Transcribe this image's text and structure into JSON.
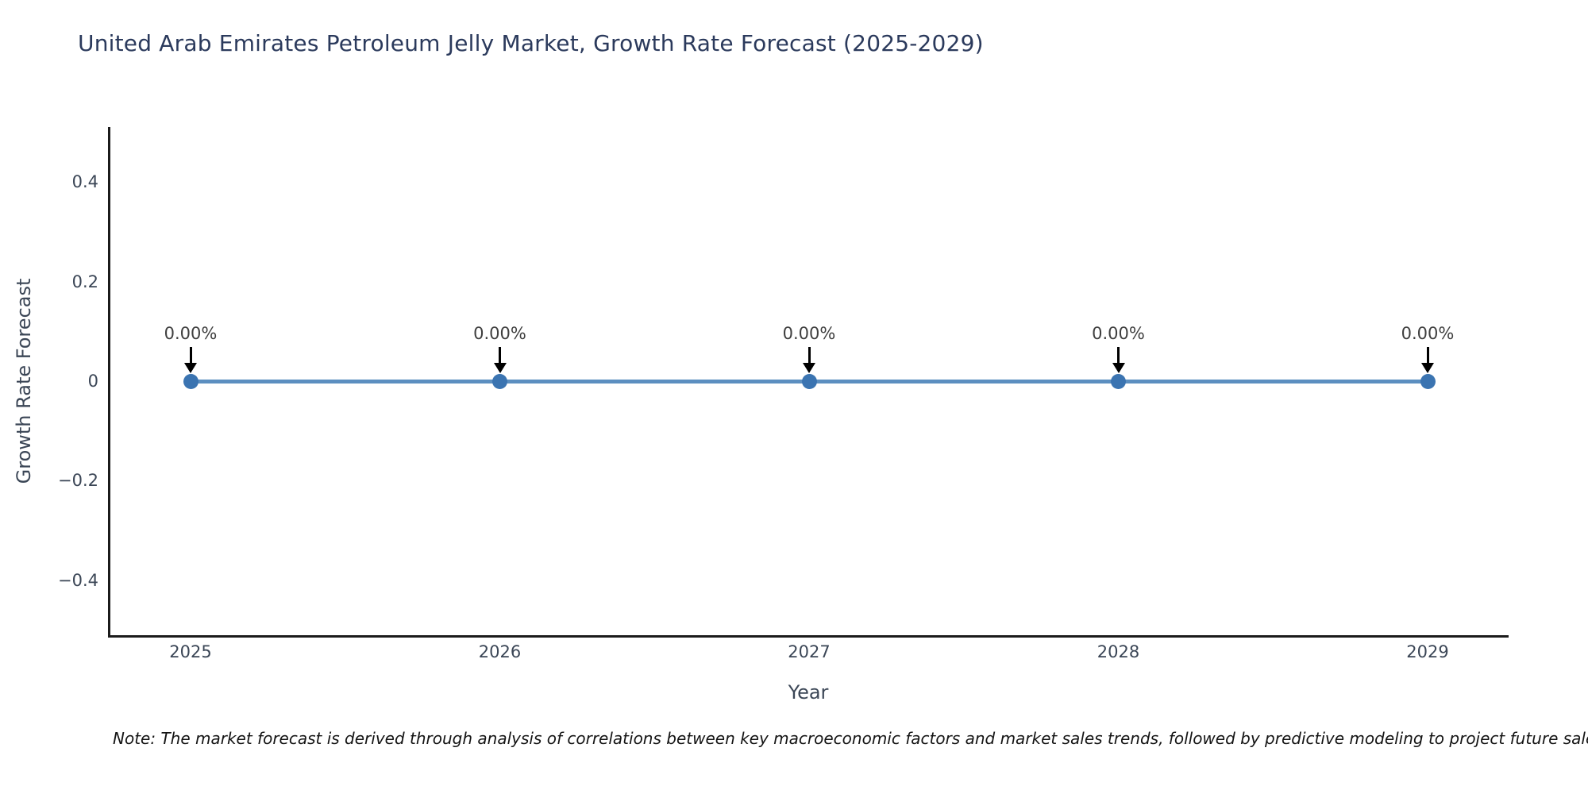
{
  "title": "United Arab Emirates Petroleum Jelly Market, Growth Rate Forecast (2025-2029)",
  "note": "Note: The market forecast is derived through analysis of correlations between key macroeconomic factors and market sales trends, followed by predictive modeling to project future sales.",
  "chart_data": {
    "type": "line",
    "title": "United Arab Emirates Petroleum Jelly Market, Growth Rate Forecast (2025-2029)",
    "xlabel": "Year",
    "ylabel": "Growth Rate Forecast",
    "x": [
      2025,
      2026,
      2027,
      2028,
      2029
    ],
    "values": [
      0,
      0,
      0,
      0,
      0
    ],
    "point_labels": [
      "0.00%",
      "0.00%",
      "0.00%",
      "0.00%",
      "0.00%"
    ],
    "xtick_labels": [
      "2025",
      "2026",
      "2027",
      "2028",
      "2029"
    ],
    "yticks": [
      0.4,
      0.2,
      0,
      -0.2,
      -0.4
    ],
    "ytick_labels": [
      "0.4",
      "0.2",
      "0",
      "−0.2",
      "−0.4"
    ],
    "ylim": [
      -0.51,
      0.51
    ],
    "grid": false,
    "legend": "none",
    "colors": {
      "line": "#5c8fc0",
      "marker": "#3b74b1",
      "annotation_arrow": "#000000",
      "annotation_text": "#3f3f3f",
      "axis": "#1b1b1b",
      "tick_text": "#3b4656",
      "title_text": "#2b3a5c"
    }
  }
}
